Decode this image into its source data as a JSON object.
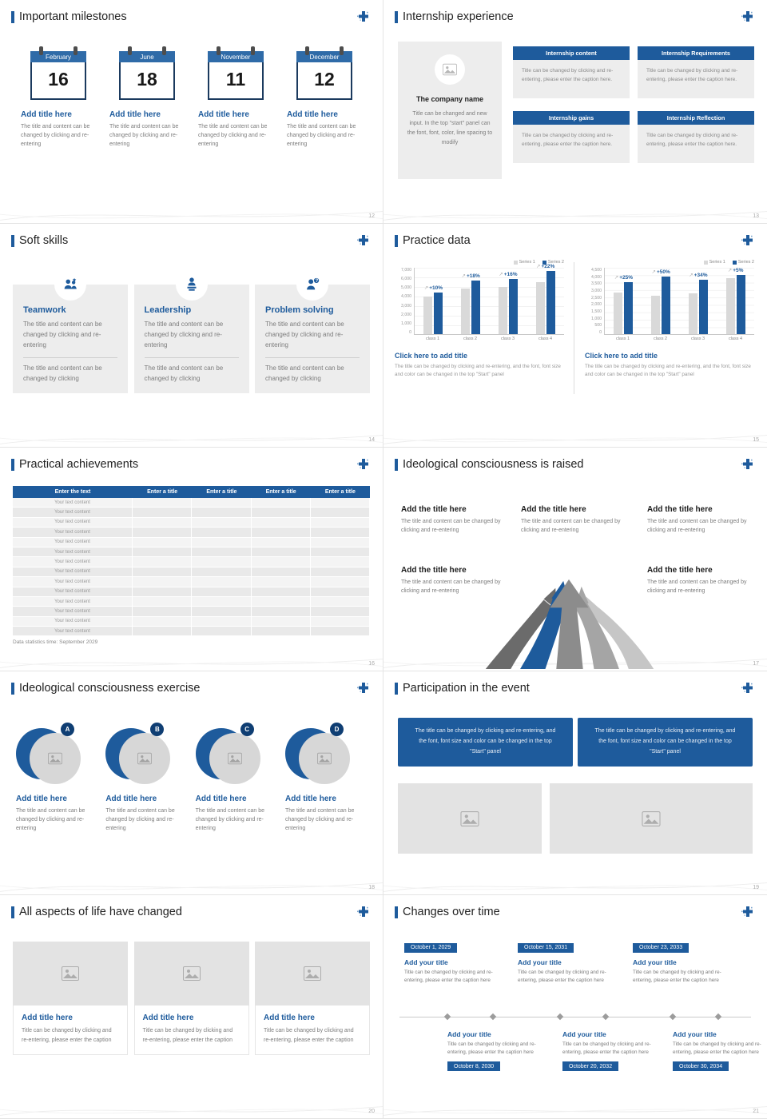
{
  "accent": "#1e5b9c",
  "slides": {
    "milestones": {
      "title": "Important milestones",
      "page": "12",
      "items": [
        {
          "month": "February",
          "day": "16",
          "item_title": "Add title here",
          "caption": "The title and content can be changed by clicking and re-entering"
        },
        {
          "month": "June",
          "day": "18",
          "item_title": "Add title here",
          "caption": "The title and content can be changed by clicking and re-entering"
        },
        {
          "month": "November",
          "day": "11",
          "item_title": "Add title here",
          "caption": "The title and content can be changed by clicking and re-entering"
        },
        {
          "month": "December",
          "day": "12",
          "item_title": "Add title here",
          "caption": "The title and content can be changed by clicking and re-entering"
        }
      ]
    },
    "internship": {
      "title": "Internship experience",
      "page": "13",
      "company_name": "The company name",
      "company_caption": "Title can be changed and new input. In the top \"start\" panel can the font, font, color, line spacing to modify",
      "boxes": [
        {
          "header": "Internship content",
          "caption": "Title can be changed by clicking and re-entering, please enter the caption here."
        },
        {
          "header": "Internship Requirements",
          "caption": "Title can be changed by clicking and re-entering, please enter the caption here."
        },
        {
          "header": "Internship gains",
          "caption": "Title can be changed by clicking and re-entering, please enter the caption here."
        },
        {
          "header": "Internship Reflection",
          "caption": "Title can be changed by clicking and re-entering, please enter the caption here."
        }
      ]
    },
    "softskills": {
      "title": "Soft skills",
      "page": "14",
      "cards": [
        {
          "name": "Teamwork",
          "text1": "The title and content can be changed by clicking and re-entering",
          "text2": "The title and content can be changed by clicking"
        },
        {
          "name": "Leadership",
          "text1": "The title and content can be changed by clicking and re-entering",
          "text2": "The title and content can be changed by clicking"
        },
        {
          "name": "Problem solving",
          "text1": "The title and content can be changed by clicking and re-entering",
          "text2": "The title and content can be changed by clicking"
        }
      ]
    },
    "practice": {
      "title": "Practice data",
      "page": "15",
      "blocks": [
        {
          "link_title": "Click here to add title",
          "caption": "The title can be changed by clicking and re-entering, and the font, font size and color can be changed in the top \"Start\" panel"
        },
        {
          "link_title": "Click here to add title",
          "caption": "The title can be changed by clicking and re-entering, and the font, font size and color can be changed in the top \"Start\" panel"
        }
      ]
    },
    "achievements": {
      "title": "Practical achievements",
      "page": "16",
      "table": {
        "headers": [
          "Enter the text",
          "Enter a title",
          "Enter a title",
          "Enter a title",
          "Enter a title"
        ],
        "row_text": "Your text content",
        "row_count": 14
      },
      "footnote": "Data statistics time: September 2029"
    },
    "raised": {
      "title": "Ideological consciousness is raised",
      "page": "17",
      "blocks": [
        {
          "block_title": "Add the title here",
          "caption": "The title and content can be changed by clicking and re-entering"
        },
        {
          "block_title": "Add the title here",
          "caption": "The title and content can be changed by clicking and re-entering"
        },
        {
          "block_title": "Add the title here",
          "caption": "The title and content can be changed by clicking and re-entering"
        },
        {
          "block_title": "Add the title here",
          "caption": "The title and content can be changed by clicking and re-entering"
        },
        {
          "block_title": "Add the title here",
          "caption": "The title and content can be changed by clicking and re-entering"
        }
      ]
    },
    "exercise": {
      "title": "Ideological consciousness exercise",
      "page": "18",
      "items": [
        {
          "letter": "A",
          "item_title": "Add title here",
          "caption": "The title and content can be changed by clicking and re-entering"
        },
        {
          "letter": "B",
          "item_title": "Add title here",
          "caption": "The title and content can be changed by clicking and re-entering"
        },
        {
          "letter": "C",
          "item_title": "Add title here",
          "caption": "The title and content can be changed by clicking and re-entering"
        },
        {
          "letter": "D",
          "item_title": "Add title here",
          "caption": "The title and content can be changed by clicking and re-entering"
        }
      ]
    },
    "participation": {
      "title": "Participation in the event",
      "page": "19",
      "banners": [
        {
          "text": "The title can be changed by clicking and re-entering, and the font, font size and color can be changed in the top \"Start\" panel"
        },
        {
          "text": "The title can be changed by clicking and re-entering, and the font, font size and color can be changed in the top \"Start\" panel"
        }
      ]
    },
    "changed": {
      "title": "All aspects of life have changed",
      "page": "20",
      "cards": [
        {
          "card_title": "Add title here",
          "caption": "Title can be changed by clicking and re-entering, please enter the caption"
        },
        {
          "card_title": "Add title here",
          "caption": "Title can be changed by clicking and re-entering, please enter the caption"
        },
        {
          "card_title": "Add title here",
          "caption": "Title can be changed by clicking and re-entering, please enter the caption"
        }
      ]
    },
    "timeline": {
      "title": "Changes over time",
      "page": "21",
      "top_items": [
        {
          "date": "October 1, 2029",
          "item_title": "Add your title",
          "caption": "Title can be changed by clicking and re-entering, please enter the caption here"
        },
        {
          "date": "October 15, 2031",
          "item_title": "Add your title",
          "caption": "Title can be changed by clicking and re-entering, please enter the caption here"
        },
        {
          "date": "October 23, 2033",
          "item_title": "Add your title",
          "caption": "Title can be changed by clicking and re-entering, please enter the caption here"
        }
      ],
      "bottom_items": [
        {
          "date": "October 8, 2030",
          "item_title": "Add your title",
          "caption": "Title can be changed by clicking and re-entering, please enter the caption here"
        },
        {
          "date": "October 20, 2032",
          "item_title": "Add your title",
          "caption": "Title can be changed by clicking and re-entering, please enter the caption here"
        },
        {
          "date": "October 30, 2034",
          "item_title": "Add your title",
          "caption": "Title can be changed by clicking and re-entering, please enter the caption here"
        }
      ]
    }
  },
  "chart_data": [
    {
      "type": "bar",
      "title": "Click here to add title",
      "categories": [
        "class 1",
        "class 2",
        "class 3",
        "class 4"
      ],
      "series": [
        {
          "name": "Series 1",
          "color": "#d9d9d9",
          "values": [
            4000,
            4800,
            5000,
            5500
          ]
        },
        {
          "name": "Series 2",
          "color": "#1e5b9c",
          "values": [
            4400,
            5650,
            5800,
            6700
          ]
        }
      ],
      "labels": [
        "+10%",
        "+18%",
        "+16%",
        "+22%"
      ],
      "ylim": [
        0,
        7000
      ],
      "yticks": [
        "7,000",
        "6,000",
        "5,000",
        "4,000",
        "3,000",
        "2,000",
        "1,000",
        "0"
      ],
      "legend_position": "top-right",
      "grid": true
    },
    {
      "type": "bar",
      "title": "Click here to add title",
      "categories": [
        "class 1",
        "class 2",
        "class 3",
        "class 4"
      ],
      "series": [
        {
          "name": "Series 1",
          "color": "#d9d9d9",
          "values": [
            2800,
            2600,
            2750,
            3800
          ]
        },
        {
          "name": "Series 2",
          "color": "#1e5b9c",
          "values": [
            3500,
            3900,
            3700,
            4000
          ]
        }
      ],
      "labels": [
        "+25%",
        "+50%",
        "+34%",
        "+5%"
      ],
      "ylim": [
        0,
        4500
      ],
      "yticks": [
        "4,500",
        "4,000",
        "3,500",
        "3,000",
        "2,500",
        "2,000",
        "1,500",
        "1,000",
        "500",
        "0"
      ],
      "legend_position": "top-right",
      "grid": true
    }
  ]
}
